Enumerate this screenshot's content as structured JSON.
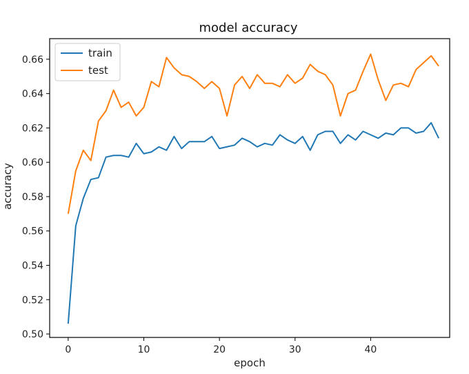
{
  "chart_data": {
    "type": "line",
    "title": "model accuracy",
    "xlabel": "epoch",
    "ylabel": "accuracy",
    "xlim": [
      -2.45,
      50.45
    ],
    "ylim": [
      0.498,
      0.672
    ],
    "x_ticks": [
      0,
      10,
      20,
      30,
      40
    ],
    "y_ticks": [
      0.5,
      0.52,
      0.54,
      0.56,
      0.58,
      0.6,
      0.62,
      0.64,
      0.66
    ],
    "x_tick_labels": [
      "0",
      "10",
      "20",
      "30",
      "40"
    ],
    "y_tick_labels": [
      "0.50",
      "0.52",
      "0.54",
      "0.56",
      "0.58",
      "0.60",
      "0.62",
      "0.64",
      "0.66"
    ],
    "grid": false,
    "legend_position": "upper left",
    "x": [
      0,
      1,
      2,
      3,
      4,
      5,
      6,
      7,
      8,
      9,
      10,
      11,
      12,
      13,
      14,
      15,
      16,
      17,
      18,
      19,
      20,
      21,
      22,
      23,
      24,
      25,
      26,
      27,
      28,
      29,
      30,
      31,
      32,
      33,
      34,
      35,
      36,
      37,
      38,
      39,
      40,
      41,
      42,
      43,
      44,
      45,
      46,
      47,
      48,
      49
    ],
    "series": [
      {
        "name": "train",
        "color": "#1f77b4",
        "values": [
          0.506,
          0.563,
          0.579,
          0.59,
          0.591,
          0.603,
          0.604,
          0.604,
          0.603,
          0.611,
          0.605,
          0.606,
          0.609,
          0.607,
          0.615,
          0.608,
          0.612,
          0.612,
          0.612,
          0.615,
          0.608,
          0.609,
          0.61,
          0.614,
          0.612,
          0.609,
          0.611,
          0.61,
          0.616,
          0.613,
          0.611,
          0.615,
          0.607,
          0.616,
          0.618,
          0.618,
          0.611,
          0.616,
          0.613,
          0.618,
          0.616,
          0.614,
          0.617,
          0.616,
          0.62,
          0.62,
          0.617,
          0.618,
          0.623,
          0.614
        ]
      },
      {
        "name": "test",
        "color": "#ff7f0e",
        "values": [
          0.57,
          0.595,
          0.607,
          0.601,
          0.624,
          0.63,
          0.642,
          0.632,
          0.635,
          0.627,
          0.632,
          0.647,
          0.644,
          0.661,
          0.655,
          0.651,
          0.65,
          0.647,
          0.643,
          0.647,
          0.643,
          0.627,
          0.645,
          0.65,
          0.643,
          0.651,
          0.646,
          0.646,
          0.644,
          0.651,
          0.646,
          0.649,
          0.657,
          0.653,
          0.651,
          0.645,
          0.627,
          0.64,
          0.642,
          0.653,
          0.663,
          0.648,
          0.636,
          0.645,
          0.646,
          0.644,
          0.654,
          0.658,
          0.662,
          0.656
        ]
      }
    ]
  }
}
